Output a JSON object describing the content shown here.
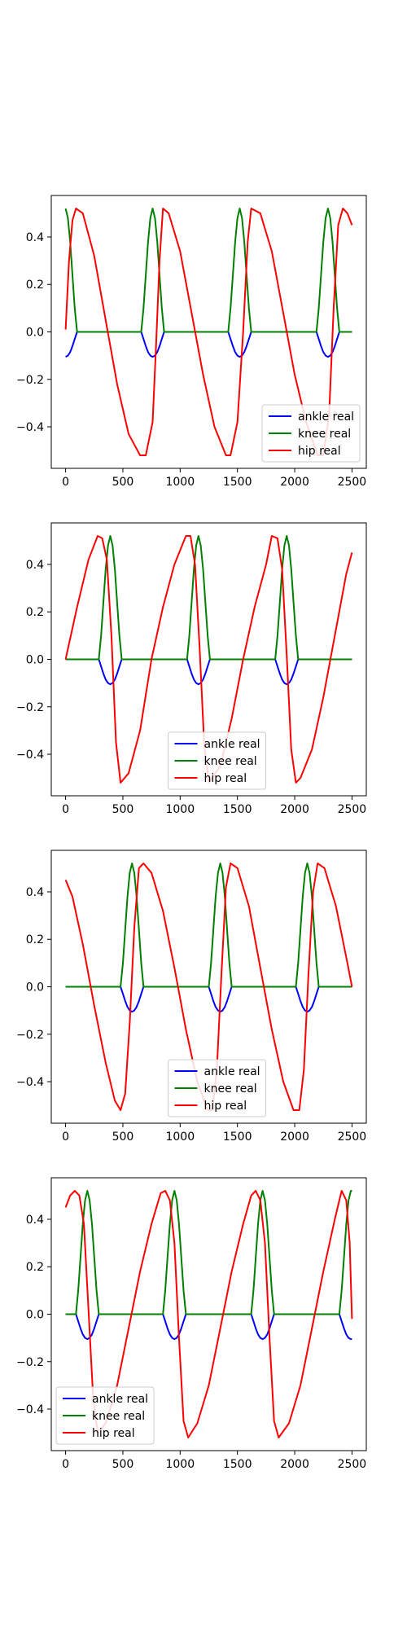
{
  "chart_data": [
    {
      "type": "line",
      "xlim": [
        -125,
        2625
      ],
      "ylim": [
        -0.575,
        0.575
      ],
      "xticks": [
        "0",
        "500",
        "1000",
        "1500",
        "2000",
        "2500"
      ],
      "yticks": [
        "0.4",
        "0.2",
        "0.0",
        "−0.2",
        "−0.4"
      ],
      "legend": "lower-right",
      "series": [
        {
          "name": "ankle real",
          "color": "#0000ff",
          "x": [
            0,
            20,
            40,
            60,
            80,
            100,
            120,
            660,
            680,
            700,
            720,
            740,
            760,
            780,
            800,
            820,
            840,
            860,
            1420,
            1440,
            1460,
            1480,
            1500,
            1520,
            1540,
            1560,
            1580,
            1600,
            1620,
            2190,
            2210,
            2230,
            2250,
            2270,
            2290,
            2310,
            2330,
            2350,
            2370,
            2390,
            2500
          ],
          "y": [
            -0.105,
            -0.1,
            -0.085,
            -0.06,
            -0.03,
            0,
            0,
            0,
            -0.03,
            -0.06,
            -0.085,
            -0.1,
            -0.105,
            -0.1,
            -0.085,
            -0.06,
            -0.03,
            0,
            0,
            -0.03,
            -0.06,
            -0.085,
            -0.1,
            -0.105,
            -0.1,
            -0.085,
            -0.06,
            -0.03,
            0,
            0,
            -0.03,
            -0.06,
            -0.085,
            -0.1,
            -0.105,
            -0.1,
            -0.085,
            -0.06,
            -0.03,
            0,
            0
          ]
        },
        {
          "name": "knee real",
          "color": "#008000",
          "x": [
            0,
            20,
            40,
            60,
            80,
            100,
            660,
            680,
            700,
            720,
            740,
            760,
            780,
            800,
            820,
            840,
            860,
            1420,
            1440,
            1460,
            1480,
            1500,
            1520,
            1540,
            1560,
            1580,
            1600,
            1620,
            2190,
            2210,
            2230,
            2250,
            2270,
            2290,
            2310,
            2330,
            2350,
            2370,
            2390,
            2500
          ],
          "y": [
            0.52,
            0.48,
            0.38,
            0.24,
            0.1,
            0,
            0,
            0.1,
            0.24,
            0.38,
            0.48,
            0.52,
            0.48,
            0.38,
            0.24,
            0.1,
            0,
            0,
            0.1,
            0.24,
            0.38,
            0.48,
            0.52,
            0.48,
            0.38,
            0.24,
            0.1,
            0,
            0,
            0.1,
            0.24,
            0.38,
            0.48,
            0.52,
            0.48,
            0.38,
            0.24,
            0.1,
            0,
            0
          ]
        },
        {
          "name": "hip real",
          "color": "#ff0000",
          "x": [
            0,
            30,
            60,
            90,
            150,
            250,
            350,
            450,
            550,
            650,
            700,
            760,
            790,
            820,
            850,
            900,
            1000,
            1100,
            1200,
            1300,
            1400,
            1440,
            1500,
            1550,
            1590,
            1620,
            1700,
            1800,
            1900,
            2000,
            2100,
            2200,
            2250,
            2300,
            2340,
            2380,
            2420,
            2460,
            2500
          ],
          "y": [
            0.01,
            0.3,
            0.47,
            0.52,
            0.5,
            0.32,
            0.05,
            -0.22,
            -0.43,
            -0.52,
            -0.52,
            -0.38,
            -0.05,
            0.3,
            0.52,
            0.5,
            0.34,
            0.08,
            -0.18,
            -0.4,
            -0.52,
            -0.52,
            -0.38,
            0.0,
            0.38,
            0.52,
            0.5,
            0.34,
            0.08,
            -0.18,
            -0.38,
            -0.52,
            -0.52,
            -0.35,
            0.1,
            0.45,
            0.52,
            0.5,
            0.45
          ]
        }
      ]
    },
    {
      "type": "line",
      "xlim": [
        -125,
        2625
      ],
      "ylim": [
        -0.575,
        0.575
      ],
      "xticks": [
        "0",
        "500",
        "1000",
        "1500",
        "2000",
        "2500"
      ],
      "yticks": [
        "0.4",
        "0.2",
        "0.0",
        "−0.2",
        "−0.4"
      ],
      "legend": "lower-center",
      "series": [
        {
          "name": "ankle real",
          "color": "#0000ff",
          "x": [
            0,
            290,
            310,
            330,
            350,
            370,
            390,
            410,
            430,
            450,
            470,
            490,
            1060,
            1080,
            1100,
            1120,
            1140,
            1160,
            1180,
            1200,
            1220,
            1240,
            1260,
            1830,
            1850,
            1870,
            1890,
            1910,
            1930,
            1950,
            1970,
            1990,
            2010,
            2030,
            2500
          ],
          "y": [
            0,
            0,
            -0.03,
            -0.06,
            -0.085,
            -0.1,
            -0.105,
            -0.1,
            -0.085,
            -0.06,
            -0.03,
            0,
            0,
            -0.03,
            -0.06,
            -0.085,
            -0.1,
            -0.105,
            -0.1,
            -0.085,
            -0.06,
            -0.03,
            0,
            0,
            -0.03,
            -0.06,
            -0.085,
            -0.1,
            -0.105,
            -0.1,
            -0.085,
            -0.06,
            -0.03,
            0,
            0
          ]
        },
        {
          "name": "knee real",
          "color": "#008000",
          "x": [
            0,
            290,
            310,
            330,
            350,
            370,
            390,
            410,
            430,
            450,
            470,
            490,
            1060,
            1080,
            1100,
            1120,
            1140,
            1160,
            1180,
            1200,
            1220,
            1240,
            1260,
            1830,
            1850,
            1870,
            1890,
            1910,
            1930,
            1950,
            1970,
            1990,
            2010,
            2030,
            2500
          ],
          "y": [
            0,
            0,
            0.1,
            0.24,
            0.38,
            0.48,
            0.52,
            0.48,
            0.38,
            0.24,
            0.1,
            0,
            0,
            0.1,
            0.24,
            0.38,
            0.48,
            0.52,
            0.48,
            0.38,
            0.24,
            0.1,
            0,
            0,
            0.1,
            0.24,
            0.38,
            0.48,
            0.52,
            0.48,
            0.38,
            0.24,
            0.1,
            0,
            0
          ]
        },
        {
          "name": "hip real",
          "color": "#ff0000",
          "x": [
            0,
            100,
            200,
            280,
            320,
            360,
            400,
            440,
            480,
            550,
            650,
            750,
            850,
            950,
            1050,
            1090,
            1130,
            1170,
            1210,
            1250,
            1350,
            1450,
            1550,
            1650,
            1750,
            1800,
            1850,
            1890,
            1930,
            1970,
            2010,
            2050,
            2150,
            2250,
            2350,
            2450,
            2500
          ],
          "y": [
            0,
            0.22,
            0.42,
            0.52,
            0.51,
            0.42,
            0.1,
            -0.35,
            -0.52,
            -0.48,
            -0.3,
            0.0,
            0.22,
            0.4,
            0.52,
            0.52,
            0.4,
            0.05,
            -0.36,
            -0.52,
            -0.45,
            -0.25,
            0.0,
            0.22,
            0.4,
            0.52,
            0.51,
            0.38,
            0.02,
            -0.38,
            -0.52,
            -0.5,
            -0.38,
            -0.16,
            0.1,
            0.36,
            0.45
          ]
        }
      ]
    },
    {
      "type": "line",
      "xlim": [
        -125,
        2625
      ],
      "ylim": [
        -0.575,
        0.575
      ],
      "xticks": [
        "0",
        "500",
        "1000",
        "1500",
        "2000",
        "2500"
      ],
      "yticks": [
        "0.4",
        "0.2",
        "0.0",
        "−0.2",
        "−0.4"
      ],
      "legend": "lower-center",
      "series": [
        {
          "name": "ankle real",
          "color": "#0000ff",
          "x": [
            0,
            480,
            500,
            520,
            540,
            560,
            580,
            600,
            620,
            640,
            660,
            680,
            1250,
            1270,
            1290,
            1310,
            1330,
            1350,
            1370,
            1390,
            1410,
            1430,
            1450,
            2010,
            2030,
            2050,
            2070,
            2090,
            2110,
            2130,
            2150,
            2170,
            2190,
            2210,
            2500
          ],
          "y": [
            0,
            0,
            -0.03,
            -0.06,
            -0.085,
            -0.1,
            -0.105,
            -0.1,
            -0.085,
            -0.06,
            -0.03,
            0,
            0,
            -0.03,
            -0.06,
            -0.085,
            -0.1,
            -0.105,
            -0.1,
            -0.085,
            -0.06,
            -0.03,
            0,
            0,
            -0.03,
            -0.06,
            -0.085,
            -0.1,
            -0.105,
            -0.1,
            -0.085,
            -0.06,
            -0.03,
            0,
            0
          ]
        },
        {
          "name": "knee real",
          "color": "#008000",
          "x": [
            0,
            480,
            500,
            520,
            540,
            560,
            580,
            600,
            620,
            640,
            660,
            680,
            1250,
            1270,
            1290,
            1310,
            1330,
            1350,
            1370,
            1390,
            1410,
            1430,
            1450,
            2010,
            2030,
            2050,
            2070,
            2090,
            2110,
            2130,
            2150,
            2170,
            2190,
            2210,
            2500
          ],
          "y": [
            0,
            0,
            0.1,
            0.24,
            0.38,
            0.48,
            0.52,
            0.48,
            0.38,
            0.24,
            0.1,
            0,
            0,
            0.1,
            0.24,
            0.38,
            0.48,
            0.52,
            0.48,
            0.38,
            0.24,
            0.1,
            0,
            0,
            0.1,
            0.24,
            0.38,
            0.48,
            0.52,
            0.48,
            0.38,
            0.24,
            0.1,
            0,
            0
          ]
        },
        {
          "name": "hip real",
          "color": "#ff0000",
          "x": [
            0,
            60,
            150,
            250,
            350,
            430,
            480,
            520,
            560,
            600,
            640,
            680,
            750,
            850,
            950,
            1050,
            1150,
            1240,
            1280,
            1320,
            1360,
            1400,
            1440,
            1500,
            1600,
            1700,
            1800,
            1900,
            1990,
            2040,
            2080,
            2120,
            2160,
            2200,
            2260,
            2360,
            2460,
            2500
          ],
          "y": [
            0.45,
            0.38,
            0.18,
            -0.08,
            -0.32,
            -0.48,
            -0.52,
            -0.45,
            -0.15,
            0.25,
            0.5,
            0.52,
            0.48,
            0.32,
            0.08,
            -0.18,
            -0.4,
            -0.52,
            -0.52,
            -0.35,
            0.05,
            0.42,
            0.52,
            0.5,
            0.34,
            0.08,
            -0.18,
            -0.4,
            -0.52,
            -0.52,
            -0.35,
            0.05,
            0.4,
            0.52,
            0.5,
            0.34,
            0.1,
            0.0
          ]
        }
      ]
    },
    {
      "type": "line",
      "xlim": [
        -125,
        2625
      ],
      "ylim": [
        -0.575,
        0.575
      ],
      "xticks": [
        "0",
        "500",
        "1000",
        "1500",
        "2000",
        "2500"
      ],
      "yticks": [
        "0.4",
        "0.2",
        "0.0",
        "−0.2",
        "−0.4"
      ],
      "legend": "lower-left",
      "series": [
        {
          "name": "ankle real",
          "color": "#0000ff",
          "x": [
            0,
            90,
            110,
            130,
            150,
            170,
            190,
            210,
            230,
            250,
            270,
            290,
            850,
            870,
            890,
            910,
            930,
            950,
            970,
            990,
            1010,
            1030,
            1050,
            1620,
            1640,
            1660,
            1680,
            1700,
            1720,
            1740,
            1760,
            1780,
            1800,
            1820,
            2390,
            2410,
            2430,
            2450,
            2470,
            2490,
            2500
          ],
          "y": [
            0,
            0,
            -0.03,
            -0.06,
            -0.085,
            -0.1,
            -0.105,
            -0.1,
            -0.085,
            -0.06,
            -0.03,
            0,
            0,
            -0.03,
            -0.06,
            -0.085,
            -0.1,
            -0.105,
            -0.1,
            -0.085,
            -0.06,
            -0.03,
            0,
            0,
            -0.03,
            -0.06,
            -0.085,
            -0.1,
            -0.105,
            -0.1,
            -0.085,
            -0.06,
            -0.03,
            0,
            0,
            -0.03,
            -0.06,
            -0.085,
            -0.1,
            -0.105,
            -0.105
          ]
        },
        {
          "name": "knee real",
          "color": "#008000",
          "x": [
            0,
            90,
            110,
            130,
            150,
            170,
            190,
            210,
            230,
            250,
            270,
            290,
            850,
            870,
            890,
            910,
            930,
            950,
            970,
            990,
            1010,
            1030,
            1050,
            1620,
            1640,
            1660,
            1680,
            1700,
            1720,
            1740,
            1760,
            1780,
            1800,
            1820,
            2390,
            2410,
            2430,
            2450,
            2470,
            2490,
            2500
          ],
          "y": [
            0,
            0,
            0.1,
            0.24,
            0.38,
            0.48,
            0.52,
            0.48,
            0.38,
            0.24,
            0.1,
            0,
            0,
            0.1,
            0.24,
            0.38,
            0.48,
            0.52,
            0.48,
            0.38,
            0.24,
            0.1,
            0,
            0,
            0.1,
            0.24,
            0.38,
            0.48,
            0.52,
            0.48,
            0.38,
            0.24,
            0.1,
            0,
            0,
            0.1,
            0.24,
            0.38,
            0.48,
            0.52,
            0.52
          ]
        },
        {
          "name": "hip real",
          "color": "#ff0000",
          "x": [
            0,
            40,
            80,
            120,
            160,
            200,
            240,
            280,
            350,
            450,
            550,
            650,
            750,
            830,
            870,
            910,
            950,
            990,
            1030,
            1070,
            1150,
            1250,
            1350,
            1450,
            1550,
            1620,
            1660,
            1700,
            1740,
            1780,
            1820,
            1860,
            1950,
            2050,
            2150,
            2250,
            2350,
            2410,
            2450,
            2480,
            2500
          ],
          "y": [
            0.45,
            0.5,
            0.52,
            0.5,
            0.38,
            0.02,
            -0.35,
            -0.5,
            -0.46,
            -0.3,
            -0.06,
            0.18,
            0.38,
            0.51,
            0.52,
            0.48,
            0.3,
            -0.1,
            -0.45,
            -0.52,
            -0.46,
            -0.3,
            -0.06,
            0.18,
            0.38,
            0.5,
            0.52,
            0.48,
            0.3,
            -0.1,
            -0.45,
            -0.52,
            -0.46,
            -0.3,
            -0.06,
            0.18,
            0.4,
            0.52,
            0.48,
            0.3,
            -0.02
          ]
        }
      ]
    }
  ]
}
